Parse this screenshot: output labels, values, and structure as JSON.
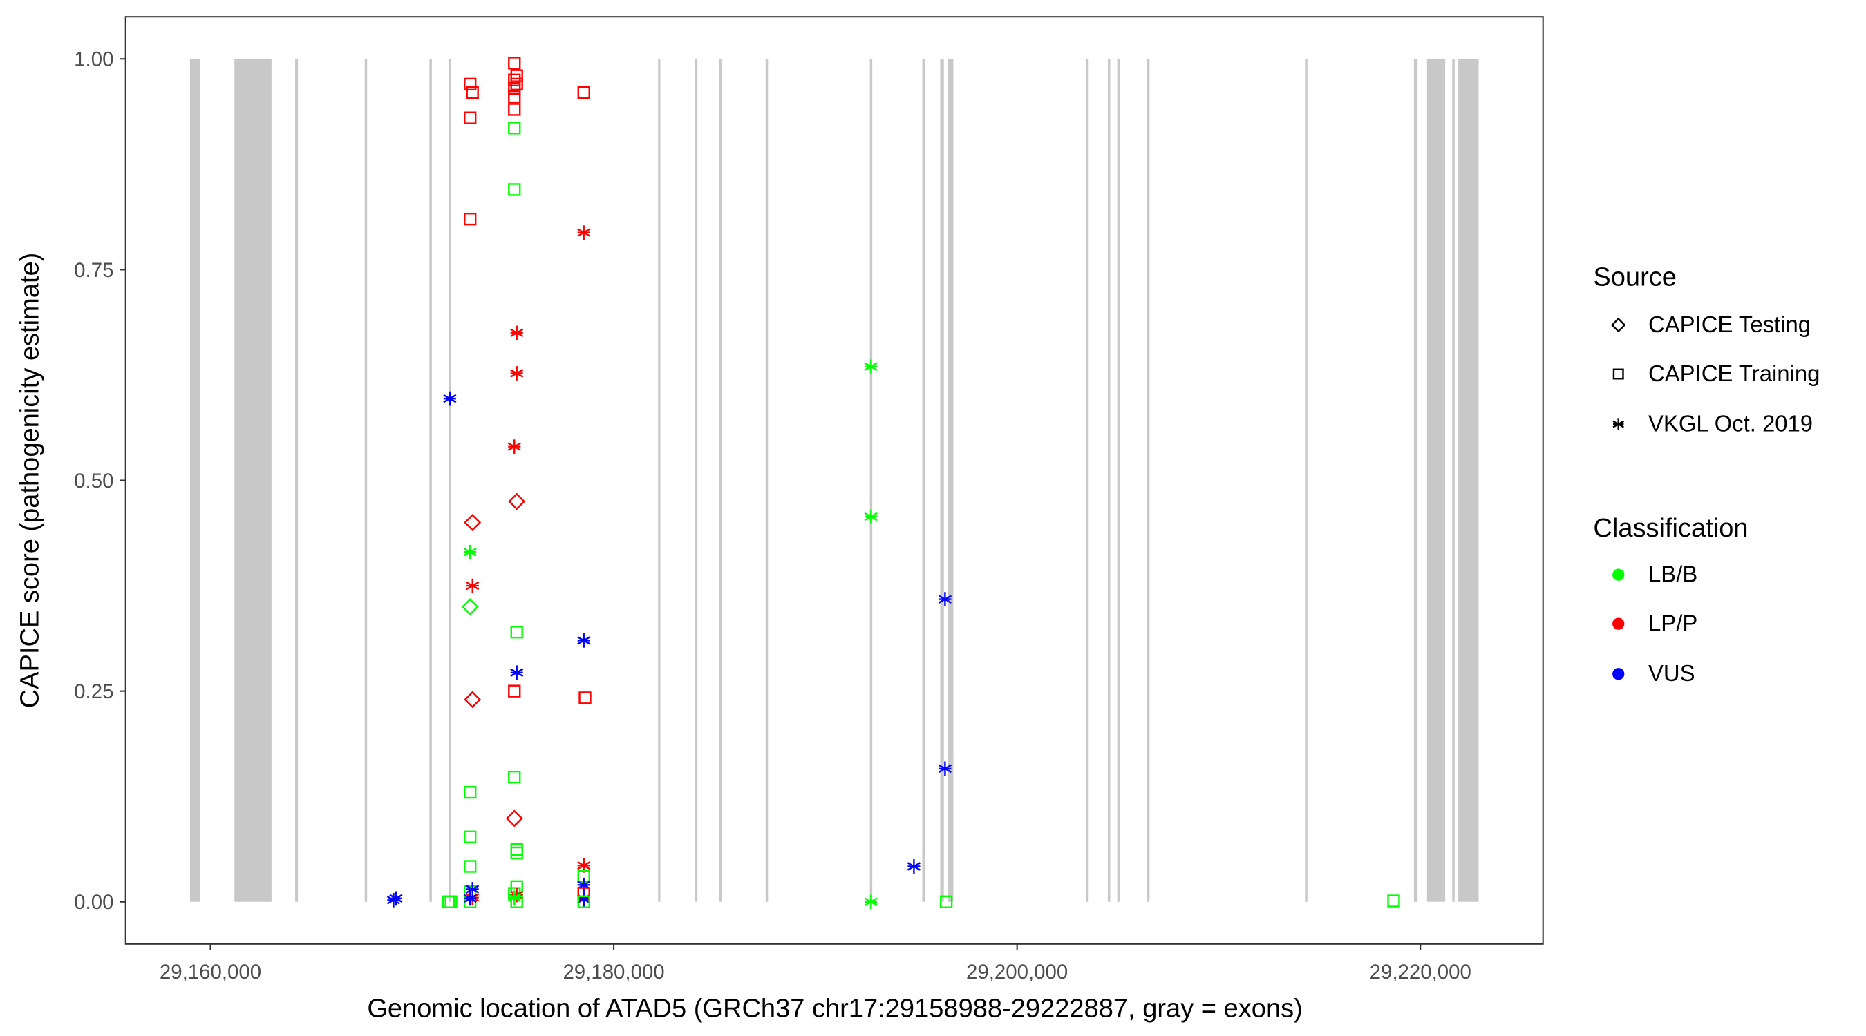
{
  "chart_data": {
    "type": "scatter",
    "title": "",
    "xlabel": "Genomic location of ATAD5 (GRCh37 chr17:29158988-29222887, gray = exons)",
    "ylabel": "CAPICE score (pathogenicity estimate)",
    "xlim": [
      29155793,
      29226082
    ],
    "ylim": [
      -0.05,
      1.05
    ],
    "x_ticks": [
      29160000,
      29180000,
      29200000,
      29220000
    ],
    "x_tick_labels": [
      "29,160,000",
      "29,180,000",
      "29,200,000",
      "29,220,000"
    ],
    "y_ticks": [
      0,
      0.25,
      0.5,
      0.75,
      1.0
    ],
    "y_tick_labels": [
      "0.00",
      "0.25",
      "0.50",
      "0.75",
      "1.00"
    ],
    "grid": false,
    "exon_color": "#c8c8c8",
    "exons": [
      [
        29158988,
        29159470
      ],
      [
        29161191,
        29163030
      ],
      [
        29164200,
        29164340
      ],
      [
        29167650,
        29167770
      ],
      [
        29170860,
        29170980
      ],
      [
        29171810,
        29171930
      ],
      [
        29182200,
        29182310
      ],
      [
        29184030,
        29184150
      ],
      [
        29185220,
        29185340
      ],
      [
        29187530,
        29187650
      ],
      [
        29192700,
        29192820
      ],
      [
        29195300,
        29195420
      ],
      [
        29196190,
        29196370
      ],
      [
        29196550,
        29196840
      ],
      [
        29203430,
        29203550
      ],
      [
        29204500,
        29204620
      ],
      [
        29204970,
        29205090
      ],
      [
        29206450,
        29206570
      ],
      [
        29214280,
        29214400
      ],
      [
        29219680,
        29219860
      ],
      [
        29220330,
        29221230
      ],
      [
        29221580,
        29221700
      ],
      [
        29221880,
        29222887
      ]
    ],
    "legend": {
      "placement": "right",
      "source": {
        "title": "Source",
        "items": [
          {
            "key": "testing",
            "label": "CAPICE Testing",
            "shape": "diamond"
          },
          {
            "key": "training",
            "label": "CAPICE Training",
            "shape": "square"
          },
          {
            "key": "vkgl",
            "label": "VKGL Oct. 2019",
            "shape": "asterisk"
          }
        ]
      },
      "classification": {
        "title": "Classification",
        "items": [
          {
            "key": "LB/B",
            "label": "LB/B",
            "color": "#00FF00"
          },
          {
            "key": "LP/P",
            "label": "LP/P",
            "color": "#FF0000"
          },
          {
            "key": "VUS",
            "label": "VUS",
            "color": "#0000FF"
          }
        ]
      }
    },
    "points": [
      [
        29172877,
        0.97,
        "training",
        "LP/P"
      ],
      [
        29172996,
        0.96,
        "training",
        "LP/P"
      ],
      [
        29172877,
        0.93,
        "training",
        "LP/P"
      ],
      [
        29172877,
        0.81,
        "training",
        "LP/P"
      ],
      [
        29172996,
        0.45,
        "testing",
        "LP/P"
      ],
      [
        29172877,
        0.415,
        "vkgl",
        "LB/B"
      ],
      [
        29172996,
        0.375,
        "vkgl",
        "LP/P"
      ],
      [
        29172877,
        0.35,
        "testing",
        "LB/B"
      ],
      [
        29172996,
        0.24,
        "testing",
        "LP/P"
      ],
      [
        29172877,
        0.13,
        "training",
        "LB/B"
      ],
      [
        29172877,
        0.077,
        "training",
        "LB/B"
      ],
      [
        29172877,
        0.042,
        "training",
        "LB/B"
      ],
      [
        29172877,
        0.012,
        "training",
        "LB/B"
      ],
      [
        29172877,
        0.0,
        "training",
        "LB/B"
      ],
      [
        29172996,
        0.005,
        "vkgl",
        "LP/P"
      ],
      [
        29172996,
        0.015,
        "vkgl",
        "VUS"
      ],
      [
        29172877,
        0.004,
        "vkgl",
        "VUS"
      ],
      [
        29175072,
        0.995,
        "training",
        "LP/P"
      ],
      [
        29175190,
        0.98,
        "training",
        "LP/P"
      ],
      [
        29175072,
        0.975,
        "training",
        "LP/P"
      ],
      [
        29175190,
        0.97,
        "training",
        "LP/P"
      ],
      [
        29175072,
        0.965,
        "training",
        "LP/P"
      ],
      [
        29175072,
        0.955,
        "training",
        "LP/P"
      ],
      [
        29175072,
        0.94,
        "training",
        "LP/P"
      ],
      [
        29175072,
        0.918,
        "training",
        "LB/B"
      ],
      [
        29175072,
        0.845,
        "training",
        "LB/B"
      ],
      [
        29175190,
        0.675,
        "vkgl",
        "LP/P"
      ],
      [
        29175190,
        0.627,
        "vkgl",
        "LP/P"
      ],
      [
        29175072,
        0.54,
        "vkgl",
        "LP/P"
      ],
      [
        29175190,
        0.475,
        "testing",
        "LP/P"
      ],
      [
        29175190,
        0.32,
        "training",
        "LB/B"
      ],
      [
        29175190,
        0.272,
        "vkgl",
        "VUS"
      ],
      [
        29175072,
        0.25,
        "training",
        "LP/P"
      ],
      [
        29175072,
        0.148,
        "training",
        "LB/B"
      ],
      [
        29175072,
        0.099,
        "testing",
        "LP/P"
      ],
      [
        29175190,
        0.062,
        "training",
        "LB/B"
      ],
      [
        29175190,
        0.058,
        "training",
        "LB/B"
      ],
      [
        29175190,
        0.018,
        "training",
        "LB/B"
      ],
      [
        29175072,
        0.01,
        "training",
        "LB/B"
      ],
      [
        29175190,
        0.008,
        "vkgl",
        "LP/P"
      ],
      [
        29175072,
        0.005,
        "vkgl",
        "LB/B"
      ],
      [
        29175190,
        0.0,
        "training",
        "LB/B"
      ],
      [
        29178515,
        0.96,
        "training",
        "LP/P"
      ],
      [
        29178515,
        0.794,
        "vkgl",
        "LP/P"
      ],
      [
        29178515,
        0.31,
        "vkgl",
        "VUS"
      ],
      [
        29178575,
        0.242,
        "training",
        "LP/P"
      ],
      [
        29178515,
        0.043,
        "vkgl",
        "LP/P"
      ],
      [
        29178515,
        0.03,
        "training",
        "LB/B"
      ],
      [
        29178515,
        0.02,
        "vkgl",
        "VUS"
      ],
      [
        29178515,
        0.01,
        "training",
        "LP/P"
      ],
      [
        29178515,
        0.004,
        "vkgl",
        "LP/P"
      ],
      [
        29178515,
        0.003,
        "vkgl",
        "VUS"
      ],
      [
        29178515,
        0.0,
        "training",
        "LB/B"
      ],
      [
        29171870,
        0.597,
        "vkgl",
        "VUS"
      ],
      [
        29171810,
        0.0,
        "training",
        "LB/B"
      ],
      [
        29171930,
        0.0,
        "training",
        "LB/B"
      ],
      [
        29169080,
        0.002,
        "vkgl",
        "VUS"
      ],
      [
        29169200,
        0.004,
        "vkgl",
        "VUS"
      ],
      [
        29192750,
        0.635,
        "vkgl",
        "LB/B"
      ],
      [
        29192750,
        0.457,
        "vkgl",
        "LB/B"
      ],
      [
        29192750,
        0.0,
        "vkgl",
        "LB/B"
      ],
      [
        29196427,
        0.359,
        "vkgl",
        "VUS"
      ],
      [
        29196427,
        0.158,
        "vkgl",
        "VUS"
      ],
      [
        29194886,
        0.042,
        "vkgl",
        "VUS"
      ],
      [
        29196487,
        0.0,
        "training",
        "LB/B"
      ],
      [
        29218671,
        0.001,
        "training",
        "LB/B"
      ]
    ]
  }
}
